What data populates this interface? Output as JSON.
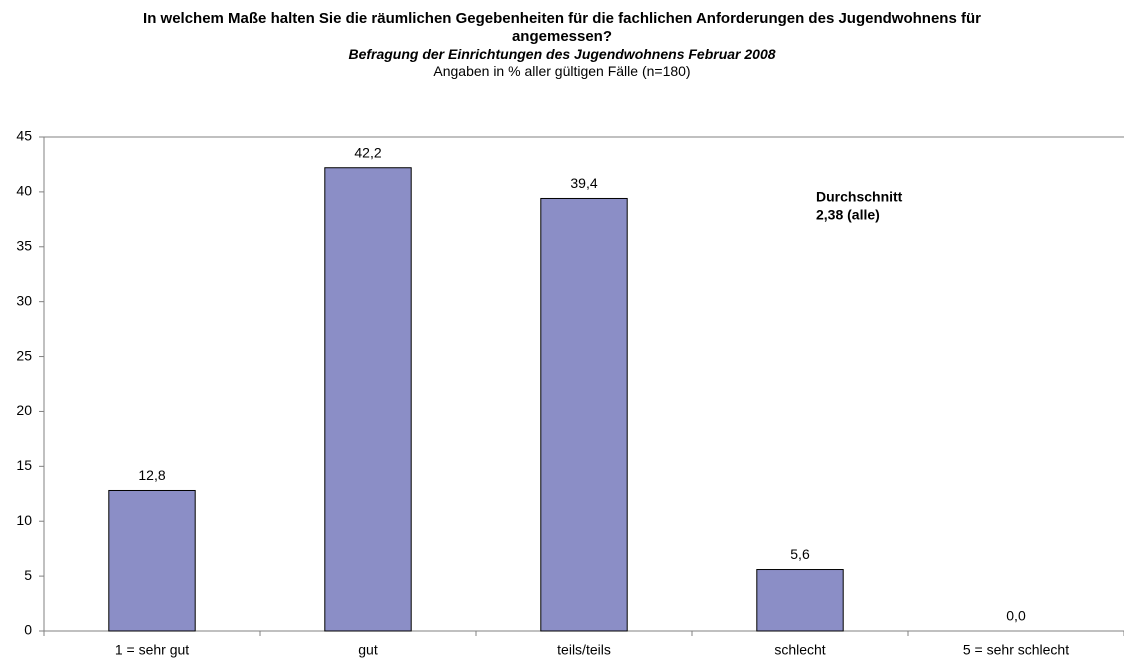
{
  "chart_data": {
    "type": "bar",
    "title": "In welchem Maße halten Sie die räumlichen Gegebenheiten für die fachlichen Anforderungen des Jugendwohnens für angemessen?",
    "subtitle": "Befragung der Einrichtungen des Jugendwohnens Februar 2008",
    "note": "Angaben in % aller gültigen Fälle (n=180)",
    "annotation": [
      "Durchschnitt",
      "2,38 (alle)"
    ],
    "categories": [
      "1 = sehr gut",
      "gut",
      "teils/teils",
      "schlecht",
      "5 = sehr schlecht"
    ],
    "values": [
      12.8,
      42.2,
      39.4,
      5.6,
      0.0
    ],
    "value_labels": [
      "12,8",
      "42,2",
      "39,4",
      "5,6",
      "0,0"
    ],
    "color": "#8b8ec6",
    "ylim": [
      0,
      45
    ],
    "yticks": [
      0,
      5,
      10,
      15,
      20,
      25,
      30,
      35,
      40,
      45
    ],
    "grid": false
  }
}
